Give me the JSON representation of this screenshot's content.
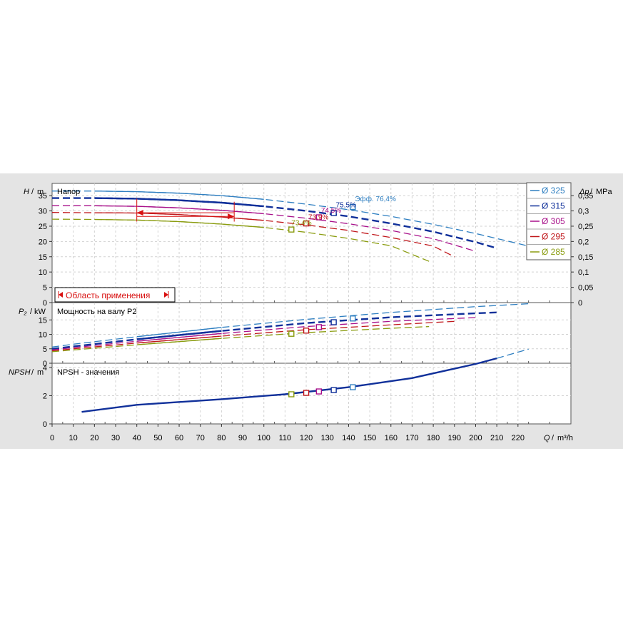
{
  "chart_data": {
    "type": "line",
    "x_axis": {
      "label": "Q",
      "unit": "m³/h",
      "range": [
        0,
        245
      ],
      "ticks": [
        0,
        10,
        20,
        30,
        40,
        50,
        60,
        70,
        80,
        90,
        100,
        110,
        120,
        130,
        140,
        150,
        160,
        170,
        180,
        190,
        200,
        210,
        220
      ]
    },
    "legend": {
      "position": "right",
      "entries": [
        {
          "label": "Ø 325",
          "color": "#2f7fc1"
        },
        {
          "label": "Ø 315",
          "color": "#10309a"
        },
        {
          "label": "Ø 305",
          "color": "#a8108a"
        },
        {
          "label": "Ø 295",
          "color": "#c0181c"
        },
        {
          "label": "Ø 285",
          "color": "#8a9c10"
        }
      ]
    },
    "application_range": {
      "label": "Область применения",
      "q_min": 40,
      "q_max": 86
    },
    "panels": [
      {
        "id": "head",
        "title": "Напор",
        "y_axis": {
          "label": "H",
          "unit": "m",
          "range": [
            0,
            39
          ],
          "ticks": [
            0,
            5,
            10,
            15,
            20,
            25,
            30,
            35
          ]
        },
        "y2_axis": {
          "label": "Δp",
          "unit": "MPa",
          "range": [
            0,
            0.39
          ],
          "ticks": [
            "0",
            "0,05",
            "0,1",
            "0,15",
            "0,2",
            "0,25",
            "0,3",
            "0,35"
          ]
        },
        "series": [
          {
            "name": "Ø 325",
            "color": "#2f7fc1",
            "q": [
              0,
              20,
              40,
              60,
              80,
              100,
              120,
              140,
              160,
              180,
              200,
              225
            ],
            "y": [
              36.5,
              36.5,
              36.3,
              35.8,
              35,
              33.8,
              32.2,
              30.4,
              28.2,
              25.6,
              22.6,
              18.5
            ]
          },
          {
            "name": "Ø 315",
            "color": "#10309a",
            "q": [
              0,
              20,
              40,
              60,
              80,
              100,
              120,
              140,
              160,
              180,
              200,
              210
            ],
            "y": [
              34.2,
              34.2,
              34,
              33.5,
              32.7,
              31.5,
              30,
              28.2,
              25.9,
              23.2,
              19.8,
              17.8
            ]
          },
          {
            "name": "Ø 305",
            "color": "#a8108a",
            "q": [
              0,
              20,
              40,
              60,
              80,
              100,
              120,
              140,
              160,
              180,
              200
            ],
            "y": [
              31.7,
              31.7,
              31.5,
              31,
              30.2,
              29.1,
              27.6,
              25.8,
              23.6,
              20.9,
              16.8
            ]
          },
          {
            "name": "Ø 295",
            "color": "#c0181c",
            "q": [
              0,
              20,
              40,
              60,
              80,
              100,
              120,
              140,
              160,
              180,
              190
            ],
            "y": [
              29.5,
              29.4,
              29.3,
              28.8,
              28,
              26.9,
              25.4,
              23.6,
              21.3,
              18.5,
              15
            ]
          },
          {
            "name": "Ø 285",
            "color": "#8a9c10",
            "q": [
              0,
              20,
              40,
              60,
              80,
              100,
              120,
              140,
              160,
              178
            ],
            "y": [
              27.3,
              27.2,
              27,
              26.5,
              25.7,
              24.6,
              23,
              21,
              18.6,
              13.5
            ]
          }
        ],
        "markers": [
          {
            "series": "Ø 325",
            "q": 142,
            "y": 31.3
          },
          {
            "series": "Ø 315",
            "q": 133,
            "y": 29.3
          },
          {
            "series": "Ø 305",
            "q": 126,
            "y": 27.9
          },
          {
            "series": "Ø 295",
            "q": 120,
            "y": 25.9
          },
          {
            "series": "Ø 285",
            "q": 113,
            "y": 23.9
          }
        ],
        "efficiency_labels": [
          {
            "text": "Эфф.  76,4%",
            "color": "#2f7fc1",
            "q": 143,
            "y": 33.2
          },
          {
            "text": "75,5%",
            "color": "#10309a",
            "q": 134,
            "y": 31.2
          },
          {
            "text": "74,5%",
            "color": "#a8108a",
            "q": 127,
            "y": 29.4
          },
          {
            "text": "73,9%",
            "color": "#c0181c",
            "q": 121,
            "y": 27.2
          },
          {
            "text": "73,4%",
            "color": "#8a9c10",
            "q": 113,
            "y": 25.3
          }
        ]
      },
      {
        "id": "power",
        "title": "Мощность на валу P2",
        "y_axis": {
          "label": "P₂",
          "unit": "kW",
          "range": [
            0,
            21
          ],
          "ticks": [
            0,
            5,
            10,
            15
          ]
        },
        "series": [
          {
            "name": "Ø 325",
            "color": "#2f7fc1",
            "q": [
              0,
              10,
              40,
              80,
              120,
              160,
              200,
              225
            ],
            "y": [
              5.6,
              6.6,
              9.2,
              12.4,
              15.2,
              17.6,
              19.6,
              20.6
            ]
          },
          {
            "name": "Ø 315",
            "color": "#10309a",
            "q": [
              0,
              10,
              40,
              80,
              120,
              160,
              200,
              210
            ],
            "y": [
              5,
              5.8,
              8.3,
              11.2,
              13.9,
              15.9,
              17.3,
              17.6
            ]
          },
          {
            "name": "Ø 305",
            "color": "#a8108a",
            "q": [
              0,
              10,
              40,
              80,
              120,
              160,
              200
            ],
            "y": [
              4.6,
              5.4,
              7.6,
              10.3,
              12.7,
              14.5,
              15.8
            ]
          },
          {
            "name": "Ø 295",
            "color": "#c0181c",
            "q": [
              0,
              10,
              40,
              80,
              120,
              160,
              190
            ],
            "y": [
              4.3,
              5,
              7,
              9.4,
              11.6,
              13.3,
              14.5
            ]
          },
          {
            "name": "Ø 285",
            "color": "#8a9c10",
            "q": [
              0,
              10,
              40,
              80,
              120,
              160,
              178
            ],
            "y": [
              4,
              4.6,
              6.4,
              8.6,
              10.6,
              12.1,
              12.7
            ]
          }
        ],
        "markers": [
          {
            "series": "Ø 325",
            "q": 142,
            "y": 15.5
          },
          {
            "series": "Ø 315",
            "q": 133,
            "y": 14.2
          },
          {
            "series": "Ø 305",
            "q": 126,
            "y": 12.5
          },
          {
            "series": "Ø 295",
            "q": 120,
            "y": 11.3
          },
          {
            "series": "Ø 285",
            "q": 113,
            "y": 10.2
          }
        ]
      },
      {
        "id": "npsh",
        "title": "NPSH - значения",
        "y_axis": {
          "label": "NPSH",
          "unit": "m",
          "range": [
            0,
            4.3
          ],
          "ticks": [
            0,
            2,
            4
          ]
        },
        "series": [
          {
            "name": "Ø 315",
            "color": "#10309a",
            "q": [
              14,
              40,
              80,
              110,
              140,
              170,
              200,
              210
            ],
            "y": [
              0.85,
              1.35,
              1.75,
              2.1,
              2.6,
              3.25,
              4.25,
              4.65
            ]
          },
          {
            "name": "Ø 325",
            "color": "#2f7fc1",
            "q": [
              210,
              225
            ],
            "y": [
              4.65,
              5.3
            ]
          }
        ],
        "markers": [
          {
            "series": "Ø 325",
            "q": 142,
            "y": 2.6
          },
          {
            "series": "Ø 315",
            "q": 133,
            "y": 2.4
          },
          {
            "series": "Ø 305",
            "q": 126,
            "y": 2.3
          },
          {
            "series": "Ø 295",
            "q": 120,
            "y": 2.2
          },
          {
            "series": "Ø 285",
            "q": 113,
            "y": 2.1
          }
        ]
      }
    ]
  }
}
